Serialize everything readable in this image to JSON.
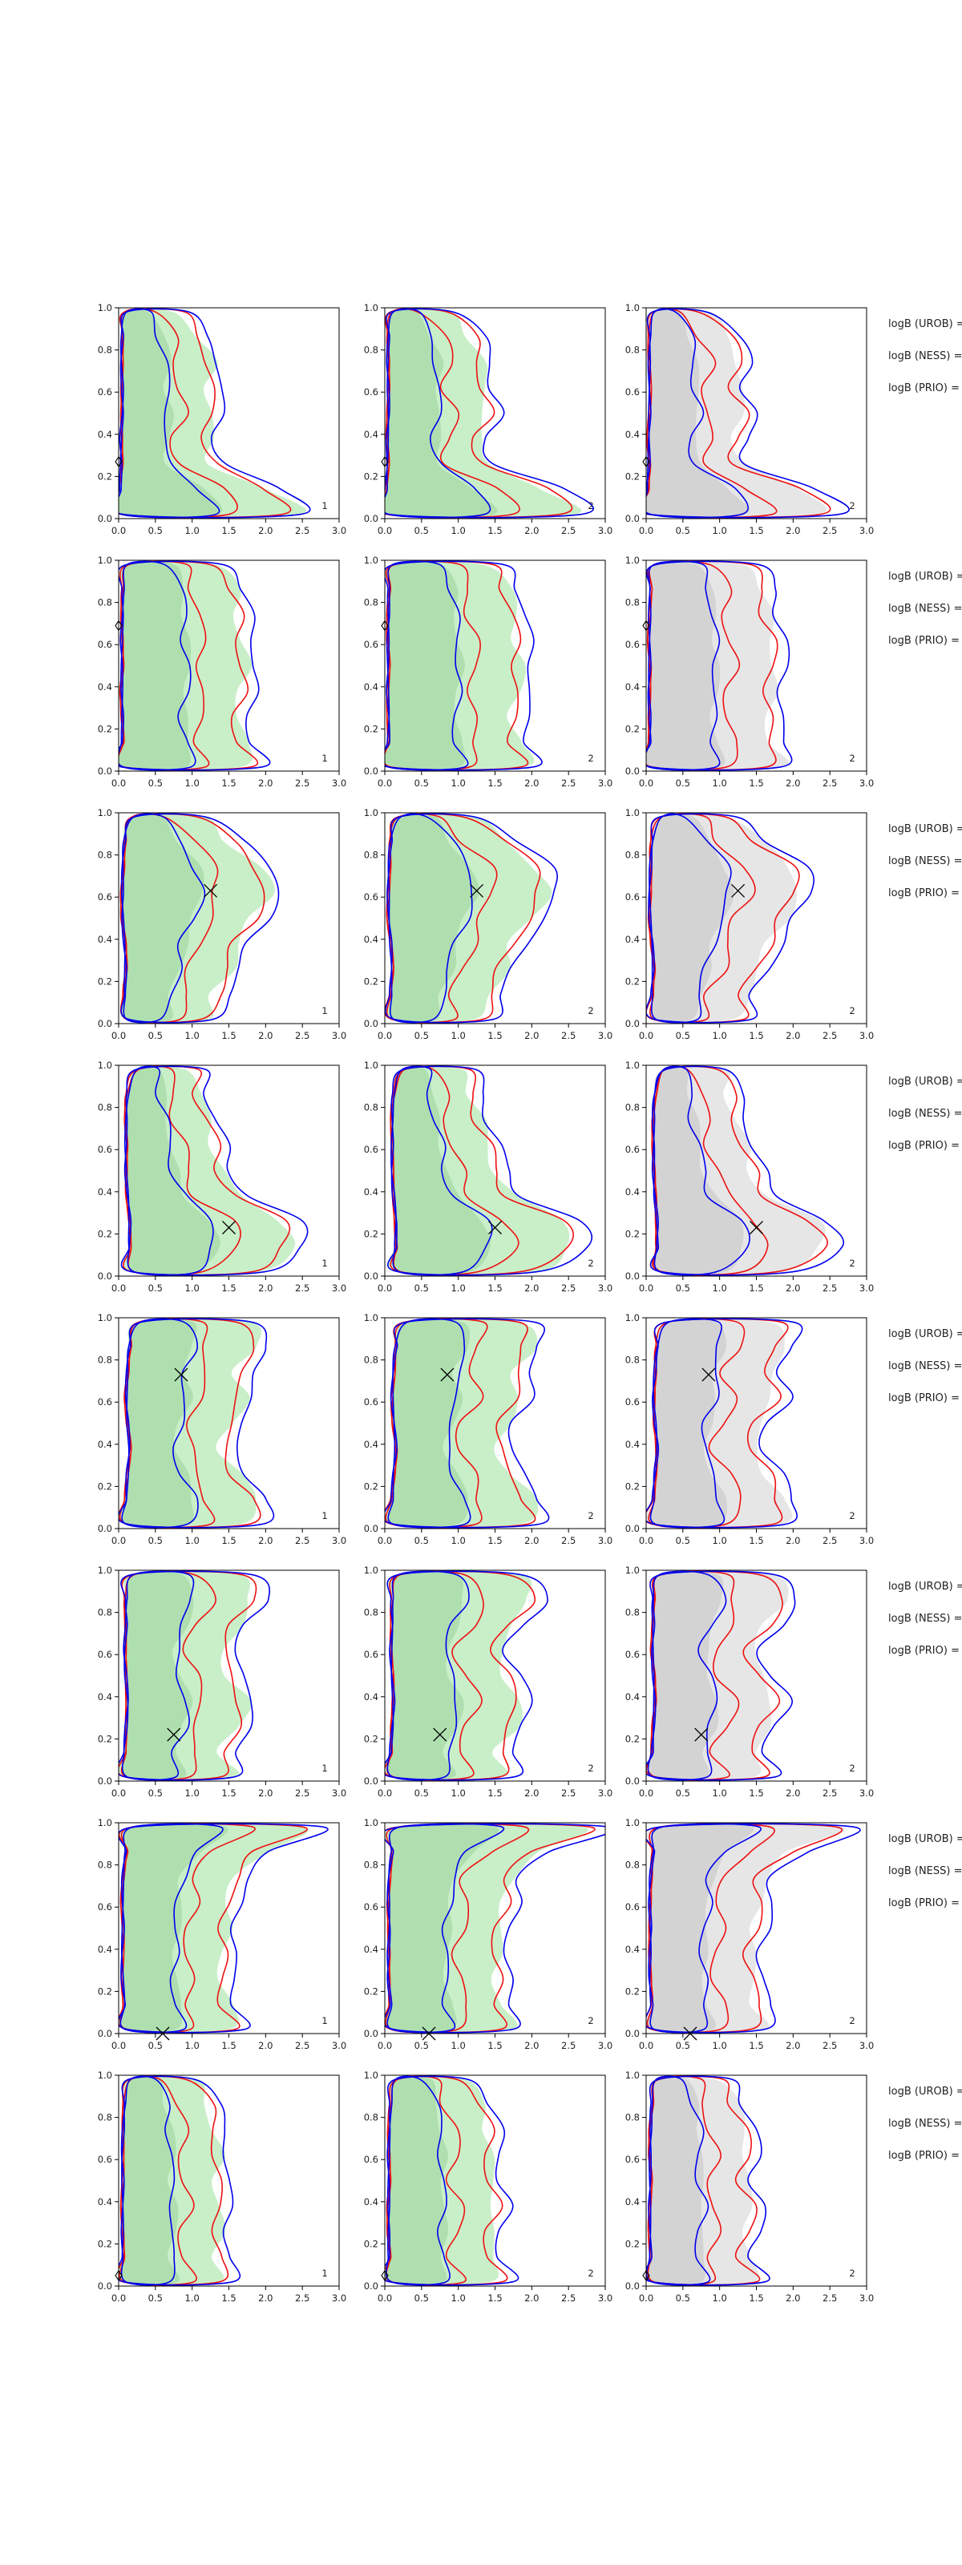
{
  "chart_data": {
    "type": "contour",
    "layout": "8 rows x 3 panels + annotation column",
    "xlim": [
      0,
      3
    ],
    "ylim": [
      0,
      1
    ],
    "x_ticks": [
      "0.0",
      "0.5",
      "1.0",
      "1.5",
      "2.0",
      "2.5",
      "3.0"
    ],
    "y_ticks": [
      "0.0",
      "0.2",
      "0.4",
      "0.6",
      "0.8",
      "1.0"
    ],
    "panel_numbers": [
      "1",
      "2",
      "2"
    ],
    "annotations": [
      "logB (UROB) =",
      "logB (NESS) =",
      "logB (PRIO) ="
    ],
    "colors": {
      "blue": "#0000ee",
      "red": "#ee1111",
      "green_outer": "#c9efc9",
      "green_inner": "#aadcaa",
      "gray_outer": "#e6e6e6",
      "gray_inner": "#cfcfcf",
      "axis": "#000000"
    },
    "rows": [
      {
        "marker": [
          0.0,
          0.27
        ],
        "marker_style": "diamond",
        "shape": "foot"
      },
      {
        "marker": [
          0.0,
          0.69
        ],
        "marker_style": "diamond",
        "shape": "column"
      },
      {
        "marker": [
          1.25,
          0.63
        ],
        "marker_style": "x",
        "shape": "bulge"
      },
      {
        "marker": [
          1.5,
          0.23
        ],
        "marker_style": "x",
        "shape": "foot_mid"
      },
      {
        "marker": [
          0.85,
          0.73
        ],
        "marker_style": "x",
        "shape": "wide"
      },
      {
        "marker": [
          0.75,
          0.22
        ],
        "marker_style": "x",
        "shape": "wavy"
      },
      {
        "marker": [
          0.6,
          0.0
        ],
        "marker_style": "x",
        "shape": "spread_top"
      },
      {
        "marker": [
          0.0,
          0.05
        ],
        "marker_style": "diamond",
        "shape": "narrow"
      }
    ]
  }
}
